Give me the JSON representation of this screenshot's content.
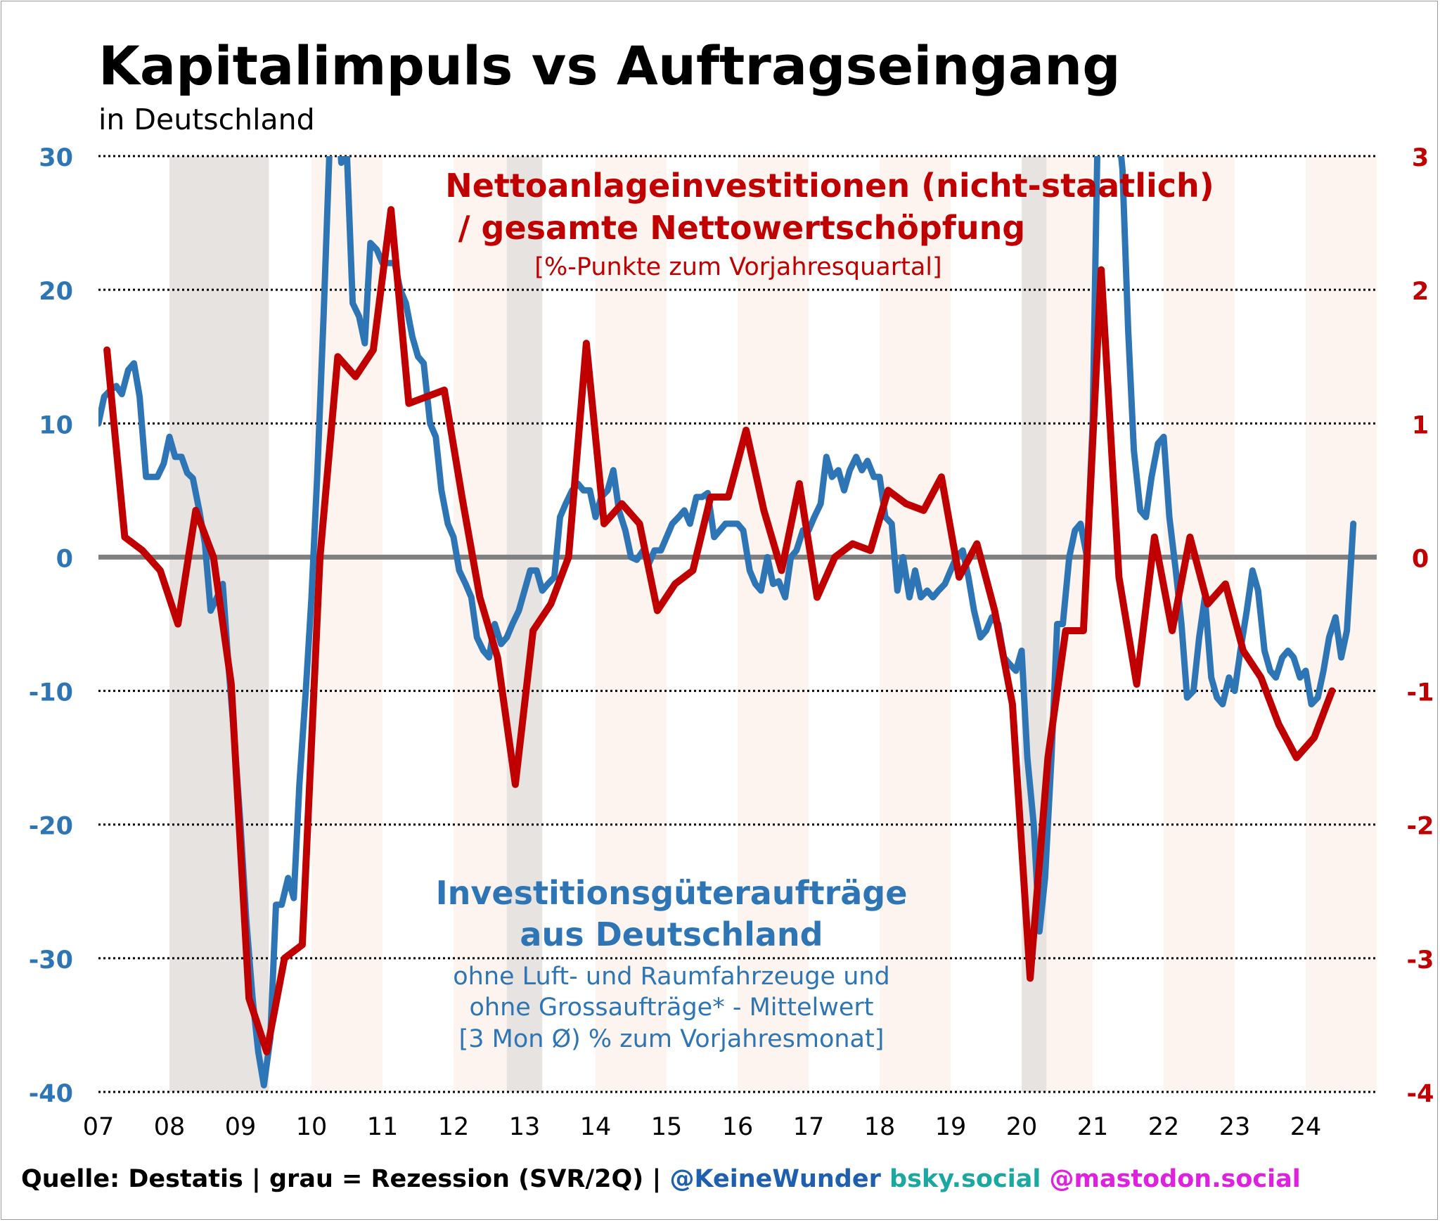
{
  "title": "Kapitalimpuls vs Auftragseingang",
  "subtitle": "in Deutschland",
  "series_red_label": {
    "line1": "Nettoanlageinvestitionen (nicht-staatlich)",
    "line2": "/ gesamte Nettowertschöpfung",
    "unit": "[%-Punkte zum Vorjahresquartal]"
  },
  "series_blue_label": {
    "line1": "Investitionsgüteraufträge",
    "line2": "aus Deutschland",
    "line3": "ohne Luft- und Raumfahrzeuge und",
    "line4": "ohne Grossaufträge* - Mittelwert",
    "line5": "[3 Mon Ø) % zum Vorjahresmonat]"
  },
  "footer": {
    "source": "Quelle: Destatis | grau = Rezession (SVR/2Q) | ",
    "handle": "@KeineWunder",
    "bsky": " bsky.social",
    "mastodon": " @mastodon.social"
  },
  "colors": {
    "blue": "#2e75b6",
    "red": "#c00000",
    "zero_line": "#808080",
    "recession": "#e7e3e1",
    "alt_year": "#fdf4ef",
    "bsky": "#1aa8a0",
    "mastodon": "#e020e0"
  },
  "chart_data": {
    "type": "line",
    "x_tick_labels": [
      "07",
      "08",
      "09",
      "10",
      "11",
      "12",
      "13",
      "14",
      "15",
      "16",
      "17",
      "18",
      "19",
      "20",
      "21",
      "22",
      "23",
      "24"
    ],
    "xlim": [
      2007.0,
      2025.0
    ],
    "grid": "horizontal dotted",
    "left_axis": {
      "ylim": [
        -40,
        30
      ],
      "ticks": [
        "30",
        "20",
        "10",
        "0",
        "-10",
        "-20",
        "-30",
        "-40"
      ]
    },
    "right_axis": {
      "ylim": [
        -4,
        3
      ],
      "ticks": [
        "3",
        "2",
        "1",
        "0",
        "-1",
        "-2",
        "-3",
        "-4"
      ]
    },
    "recessions": [
      [
        2008.0,
        2009.4
      ],
      [
        2012.75,
        2013.25
      ],
      [
        2020.0,
        2020.35
      ]
    ],
    "shaded_years": [
      2008,
      2010,
      2012,
      2014,
      2016,
      2018,
      2020,
      2022,
      2024
    ],
    "series": [
      {
        "axis": "left",
        "points": [
          [
            2007.0,
            10
          ],
          [
            2007.08,
            12
          ],
          [
            2007.17,
            12.5
          ],
          [
            2007.25,
            12.8
          ],
          [
            2007.33,
            12.2
          ],
          [
            2007.42,
            14
          ],
          [
            2007.5,
            14.5
          ],
          [
            2007.58,
            12
          ],
          [
            2007.67,
            6
          ],
          [
            2007.75,
            6
          ],
          [
            2007.83,
            6
          ],
          [
            2007.92,
            7
          ],
          [
            2008.0,
            9
          ],
          [
            2008.08,
            7.5
          ],
          [
            2008.17,
            7.5
          ],
          [
            2008.25,
            6.3
          ],
          [
            2008.33,
            5.9
          ],
          [
            2008.42,
            3.5
          ],
          [
            2008.5,
            1
          ],
          [
            2008.58,
            -4
          ],
          [
            2008.67,
            -3
          ],
          [
            2008.75,
            -2
          ],
          [
            2008.83,
            -8
          ],
          [
            2008.92,
            -14
          ],
          [
            2009.0,
            -20
          ],
          [
            2009.08,
            -27
          ],
          [
            2009.17,
            -33
          ],
          [
            2009.25,
            -37
          ],
          [
            2009.33,
            -39.5
          ],
          [
            2009.42,
            -36
          ],
          [
            2009.5,
            -26
          ],
          [
            2009.58,
            -26
          ],
          [
            2009.67,
            -24
          ],
          [
            2009.75,
            -25.5
          ],
          [
            2009.83,
            -17
          ],
          [
            2009.92,
            -10
          ],
          [
            2010.0,
            -3
          ],
          [
            2010.08,
            6
          ],
          [
            2010.17,
            18
          ],
          [
            2010.25,
            30
          ],
          [
            2010.33,
            37
          ],
          [
            2010.42,
            29.5
          ],
          [
            2010.5,
            30
          ],
          [
            2010.58,
            19
          ],
          [
            2010.67,
            18
          ],
          [
            2010.75,
            16
          ],
          [
            2010.83,
            23.5
          ],
          [
            2010.92,
            23
          ],
          [
            2011.0,
            22
          ],
          [
            2011.08,
            22
          ],
          [
            2011.17,
            22
          ],
          [
            2011.25,
            20
          ],
          [
            2011.33,
            19
          ],
          [
            2011.42,
            16.5
          ],
          [
            2011.5,
            15
          ],
          [
            2011.58,
            14.5
          ],
          [
            2011.67,
            10
          ],
          [
            2011.75,
            9
          ],
          [
            2011.83,
            5
          ],
          [
            2011.92,
            2.5
          ],
          [
            2012.0,
            1.5
          ],
          [
            2012.08,
            -1
          ],
          [
            2012.17,
            -2
          ],
          [
            2012.25,
            -3
          ],
          [
            2012.33,
            -6
          ],
          [
            2012.42,
            -7
          ],
          [
            2012.5,
            -7.5
          ],
          [
            2012.58,
            -5
          ],
          [
            2012.67,
            -6.5
          ],
          [
            2012.75,
            -6
          ],
          [
            2012.83,
            -5
          ],
          [
            2012.92,
            -4
          ],
          [
            2013.0,
            -2.5
          ],
          [
            2013.08,
            -1
          ],
          [
            2013.17,
            -1
          ],
          [
            2013.25,
            -2.5
          ],
          [
            2013.33,
            -2
          ],
          [
            2013.42,
            -1.5
          ],
          [
            2013.5,
            3
          ],
          [
            2013.58,
            4
          ],
          [
            2013.67,
            5
          ],
          [
            2013.75,
            5.5
          ],
          [
            2013.83,
            5
          ],
          [
            2013.92,
            5
          ],
          [
            2014.0,
            3
          ],
          [
            2014.08,
            4.5
          ],
          [
            2014.17,
            5
          ],
          [
            2014.25,
            6.5
          ],
          [
            2014.33,
            3.5
          ],
          [
            2014.42,
            2
          ],
          [
            2014.5,
            0
          ],
          [
            2014.58,
            -0.2
          ],
          [
            2014.67,
            0.5
          ],
          [
            2014.75,
            -0.5
          ],
          [
            2014.83,
            0.5
          ],
          [
            2014.92,
            0.5
          ],
          [
            2015.0,
            1.5
          ],
          [
            2015.08,
            2.5
          ],
          [
            2015.17,
            3
          ],
          [
            2015.25,
            3.5
          ],
          [
            2015.33,
            2.5
          ],
          [
            2015.42,
            4.5
          ],
          [
            2015.5,
            4.5
          ],
          [
            2015.58,
            4.8
          ],
          [
            2015.67,
            1.5
          ],
          [
            2015.75,
            2
          ],
          [
            2015.83,
            2.5
          ],
          [
            2015.92,
            2.5
          ],
          [
            2016.0,
            2.5
          ],
          [
            2016.08,
            2
          ],
          [
            2016.17,
            -1
          ],
          [
            2016.25,
            -2
          ],
          [
            2016.33,
            -2.5
          ],
          [
            2016.42,
            0
          ],
          [
            2016.5,
            -2
          ],
          [
            2016.58,
            -1.8
          ],
          [
            2016.67,
            -3
          ],
          [
            2016.75,
            0
          ],
          [
            2016.83,
            0.5
          ],
          [
            2016.92,
            2
          ],
          [
            2017.0,
            2
          ],
          [
            2017.08,
            3
          ],
          [
            2017.17,
            4
          ],
          [
            2017.25,
            7.5
          ],
          [
            2017.33,
            6
          ],
          [
            2017.42,
            6.5
          ],
          [
            2017.5,
            5
          ],
          [
            2017.58,
            6.5
          ],
          [
            2017.67,
            7.5
          ],
          [
            2017.75,
            6.5
          ],
          [
            2017.83,
            7.2
          ],
          [
            2017.92,
            6
          ],
          [
            2018.0,
            6
          ],
          [
            2018.08,
            3
          ],
          [
            2018.17,
            2.5
          ],
          [
            2018.25,
            -2.5
          ],
          [
            2018.33,
            0
          ],
          [
            2018.42,
            -3
          ],
          [
            2018.5,
            -1
          ],
          [
            2018.58,
            -3
          ],
          [
            2018.67,
            -2.5
          ],
          [
            2018.75,
            -3
          ],
          [
            2018.83,
            -2.5
          ],
          [
            2018.92,
            -2
          ],
          [
            2019.0,
            -1
          ],
          [
            2019.08,
            0
          ],
          [
            2019.17,
            0.5
          ],
          [
            2019.25,
            -1.5
          ],
          [
            2019.33,
            -4
          ],
          [
            2019.42,
            -6
          ],
          [
            2019.5,
            -5.5
          ],
          [
            2019.58,
            -4.5
          ],
          [
            2019.67,
            -5
          ],
          [
            2019.75,
            -7.5
          ],
          [
            2019.83,
            -8
          ],
          [
            2019.92,
            -8.5
          ],
          [
            2020.0,
            -7
          ],
          [
            2020.08,
            -15
          ],
          [
            2020.17,
            -20
          ],
          [
            2020.25,
            -28
          ],
          [
            2020.33,
            -24
          ],
          [
            2020.42,
            -15
          ],
          [
            2020.5,
            -5
          ],
          [
            2020.58,
            -5
          ],
          [
            2020.67,
            0
          ],
          [
            2020.75,
            2
          ],
          [
            2020.83,
            2.5
          ],
          [
            2020.92,
            0
          ],
          [
            2021.0,
            10
          ],
          [
            2021.08,
            35
          ],
          [
            2021.17,
            32
          ],
          [
            2021.25,
            32
          ],
          [
            2021.33,
            34
          ],
          [
            2021.42,
            29
          ],
          [
            2021.5,
            17
          ],
          [
            2021.58,
            8
          ],
          [
            2021.67,
            3.5
          ],
          [
            2021.75,
            3
          ],
          [
            2021.83,
            6
          ],
          [
            2021.92,
            8.5
          ],
          [
            2022.0,
            9
          ],
          [
            2022.08,
            3
          ],
          [
            2022.17,
            -1
          ],
          [
            2022.25,
            -5
          ],
          [
            2022.33,
            -10.5
          ],
          [
            2022.42,
            -10
          ],
          [
            2022.5,
            -6
          ],
          [
            2022.58,
            -3
          ],
          [
            2022.67,
            -9
          ],
          [
            2022.75,
            -10.5
          ],
          [
            2022.83,
            -11
          ],
          [
            2022.92,
            -9
          ],
          [
            2023.0,
            -10
          ],
          [
            2023.08,
            -7
          ],
          [
            2023.17,
            -4
          ],
          [
            2023.25,
            -1
          ],
          [
            2023.33,
            -2.5
          ],
          [
            2023.42,
            -7
          ],
          [
            2023.5,
            -8.5
          ],
          [
            2023.58,
            -9
          ],
          [
            2023.67,
            -7.5
          ],
          [
            2023.75,
            -7
          ],
          [
            2023.83,
            -7.5
          ],
          [
            2023.92,
            -9
          ],
          [
            2024.0,
            -8.5
          ],
          [
            2024.08,
            -11
          ],
          [
            2024.17,
            -10.5
          ],
          [
            2024.25,
            -8.5
          ],
          [
            2024.33,
            -6
          ],
          [
            2024.42,
            -4.5
          ],
          [
            2024.5,
            -7.5
          ],
          [
            2024.58,
            -5.5
          ],
          [
            2024.67,
            2.5
          ]
        ]
      },
      {
        "axis": "right",
        "points": [
          [
            2007.12,
            1.55
          ],
          [
            2007.37,
            0.15
          ],
          [
            2007.62,
            0.05
          ],
          [
            2007.87,
            -0.1
          ],
          [
            2008.12,
            -0.5
          ],
          [
            2008.37,
            0.35
          ],
          [
            2008.62,
            0
          ],
          [
            2008.87,
            -0.95
          ],
          [
            2009.12,
            -3.3
          ],
          [
            2009.37,
            -3.7
          ],
          [
            2009.62,
            -3.0
          ],
          [
            2009.87,
            -2.9
          ],
          [
            2010.12,
            0
          ],
          [
            2010.37,
            1.5
          ],
          [
            2010.62,
            1.35
          ],
          [
            2010.87,
            1.55
          ],
          [
            2011.12,
            2.6
          ],
          [
            2011.37,
            1.15
          ],
          [
            2011.62,
            1.2
          ],
          [
            2011.87,
            1.25
          ],
          [
            2012.12,
            0.45
          ],
          [
            2012.37,
            -0.3
          ],
          [
            2012.62,
            -0.75
          ],
          [
            2012.87,
            -1.7
          ],
          [
            2013.12,
            -0.55
          ],
          [
            2013.37,
            -0.35
          ],
          [
            2013.62,
            0
          ],
          [
            2013.87,
            1.6
          ],
          [
            2014.12,
            0.25
          ],
          [
            2014.37,
            0.4
          ],
          [
            2014.62,
            0.25
          ],
          [
            2014.87,
            -0.4
          ],
          [
            2015.12,
            -0.2
          ],
          [
            2015.37,
            -0.1
          ],
          [
            2015.62,
            0.45
          ],
          [
            2015.87,
            0.45
          ],
          [
            2016.12,
            0.95
          ],
          [
            2016.37,
            0.35
          ],
          [
            2016.62,
            -0.1
          ],
          [
            2016.87,
            0.55
          ],
          [
            2017.12,
            -0.3
          ],
          [
            2017.37,
            0
          ],
          [
            2017.62,
            0.1
          ],
          [
            2017.87,
            0.05
          ],
          [
            2018.12,
            0.5
          ],
          [
            2018.37,
            0.4
          ],
          [
            2018.62,
            0.35
          ],
          [
            2018.87,
            0.6
          ],
          [
            2019.12,
            -0.15
          ],
          [
            2019.37,
            0.1
          ],
          [
            2019.62,
            -0.4
          ],
          [
            2019.87,
            -1.1
          ],
          [
            2020.12,
            -3.15
          ],
          [
            2020.37,
            -1.5
          ],
          [
            2020.62,
            -0.55
          ],
          [
            2020.87,
            -0.55
          ],
          [
            2021.12,
            2.15
          ],
          [
            2021.37,
            -0.15
          ],
          [
            2021.62,
            -0.95
          ],
          [
            2021.87,
            0.15
          ],
          [
            2022.12,
            -0.55
          ],
          [
            2022.37,
            0.15
          ],
          [
            2022.62,
            -0.35
          ],
          [
            2022.87,
            -0.2
          ],
          [
            2023.12,
            -0.7
          ],
          [
            2023.37,
            -0.9
          ],
          [
            2023.62,
            -1.25
          ],
          [
            2023.87,
            -1.5
          ],
          [
            2024.12,
            -1.35
          ],
          [
            2024.37,
            -1.0
          ]
        ]
      }
    ]
  }
}
